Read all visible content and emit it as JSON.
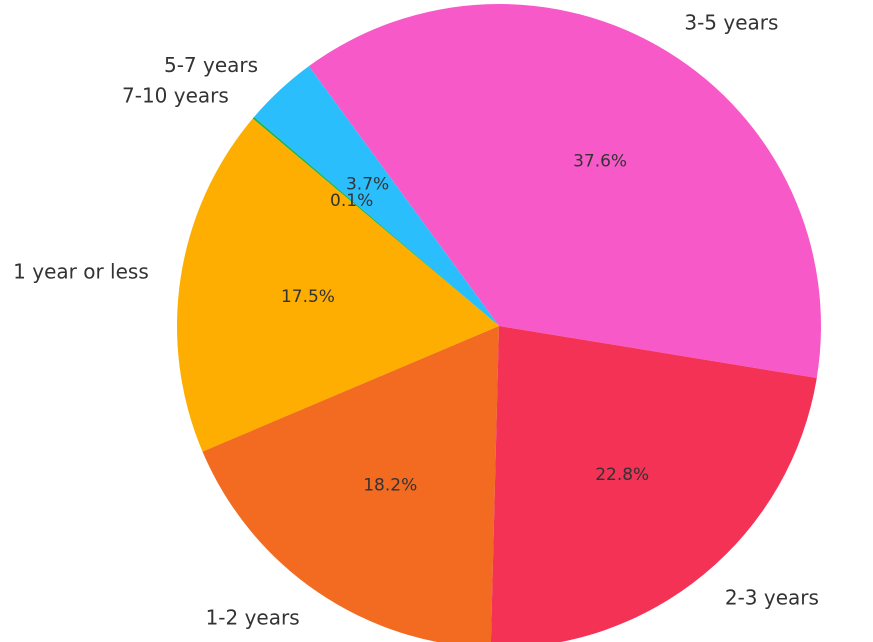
{
  "chart_data": {
    "type": "pie",
    "categories": [
      "3-5 years",
      "5-7 years",
      "7-10 years",
      "1 year or less",
      "1-2 years",
      "2-3 years"
    ],
    "values": [
      37.6,
      3.7,
      0.1,
      17.5,
      18.2,
      22.8
    ],
    "value_labels": [
      "37.6%",
      "3.7%",
      "0.1%",
      "17.5%",
      "18.2%",
      "22.8%"
    ],
    "colors": [
      "#f75ac8",
      "#2bbefc",
      "#1db34f",
      "#fdae00",
      "#f26b21",
      "#f33255"
    ],
    "startangle": -9.3,
    "counterclock": true
  }
}
